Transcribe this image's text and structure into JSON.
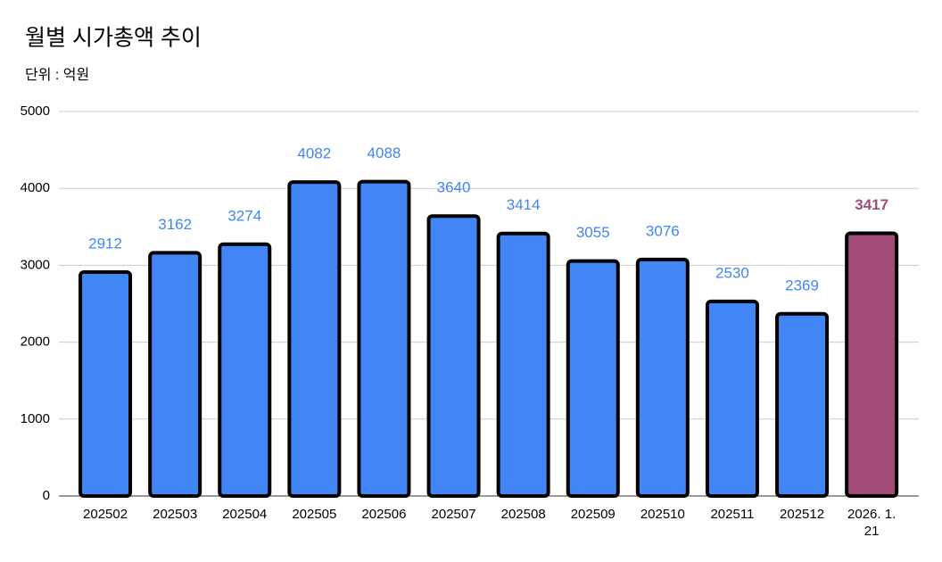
{
  "chart_data": {
    "type": "bar",
    "title": "월별 시가총액 추이",
    "subtitle": "단위 : 억원",
    "categories": [
      "202502",
      "202503",
      "202504",
      "202505",
      "202506",
      "202507",
      "202508",
      "202509",
      "202510",
      "202511",
      "202512",
      "2026. 1. 21"
    ],
    "values": [
      2912,
      3162,
      3274,
      4082,
      4088,
      3640,
      3414,
      3055,
      3076,
      2530,
      2369,
      3417
    ],
    "colors": [
      "#4285f4",
      "#4285f4",
      "#4285f4",
      "#4285f4",
      "#4285f4",
      "#4285f4",
      "#4285f4",
      "#4285f4",
      "#4285f4",
      "#4285f4",
      "#4285f4",
      "#a34c78"
    ],
    "ylim": [
      0,
      5000
    ],
    "yticks": [
      0,
      1000,
      2000,
      3000,
      4000,
      5000
    ],
    "grid": true
  }
}
